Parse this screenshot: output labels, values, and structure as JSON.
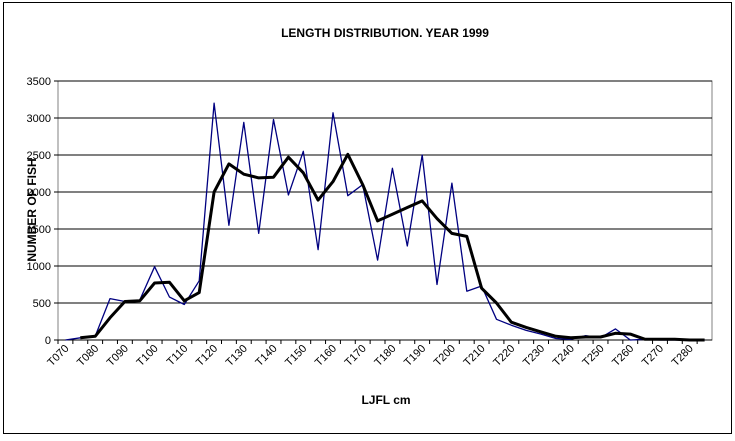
{
  "chart_data": {
    "type": "line",
    "title": "LENGTH DISTRIBUTION. YEAR 1999",
    "x_label": "LJFL cm",
    "y_label": "NUMBER OF FISH",
    "categories": [
      "T070",
      null,
      "T080",
      null,
      "T090",
      null,
      "T100",
      null,
      "T110",
      null,
      "T120",
      null,
      "T130",
      null,
      "T140",
      null,
      "T150",
      null,
      "T160",
      null,
      "T170",
      null,
      "T180",
      null,
      "T190",
      null,
      "T200",
      null,
      "T210",
      null,
      "T220",
      null,
      "T230",
      null,
      "T240",
      null,
      "T250",
      null,
      "T260",
      null,
      "T270",
      null,
      "T280",
      null
    ],
    "series": [
      {
        "color": "#000080",
        "width": 1.3,
        "values": [
          0,
          30,
          50,
          560,
          520,
          540,
          990,
          580,
          480,
          800,
          3200,
          1550,
          2940,
          1440,
          2980,
          1960,
          2550,
          1220,
          3070,
          1950,
          2100,
          1080,
          2320,
          1270,
          2500,
          750,
          2120,
          660,
          730,
          280,
          200,
          130,
          80,
          20,
          10,
          60,
          30,
          150,
          0,
          10,
          0,
          0,
          0,
          0
        ]
      },
      {
        "color": "#000000",
        "width": 3,
        "values": [
          null,
          30,
          50,
          300,
          520,
          530,
          770,
          780,
          530,
          640,
          2000,
          2380,
          2240,
          2190,
          2200,
          2470,
          2260,
          1890,
          2140,
          2510,
          2100,
          1610,
          1700,
          1790,
          1880,
          1640,
          1440,
          1400,
          700,
          500,
          240,
          170,
          110,
          50,
          30,
          40,
          40,
          90,
          80,
          10,
          10,
          10,
          0,
          0
        ]
      }
    ],
    "ylim": [
      0,
      3500
    ],
    "yticks": [
      0,
      500,
      1000,
      1500,
      2000,
      2500,
      3000,
      3500
    ],
    "grid": true
  }
}
